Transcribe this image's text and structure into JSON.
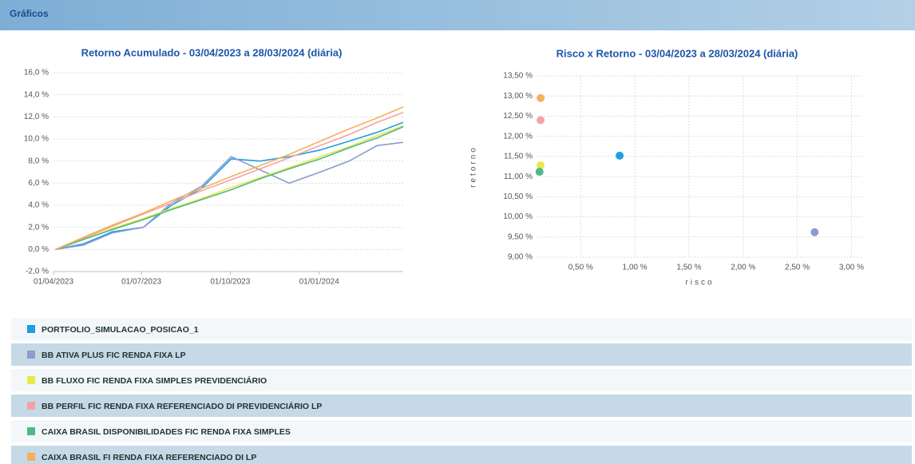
{
  "section_title": "Gráficos",
  "chart_data": [
    {
      "type": "line",
      "title": "Retorno Acumulado - 03/04/2023 a 28/03/2024 (diária)",
      "x": [
        "03/04/2023",
        "02/05/2023",
        "01/06/2023",
        "03/07/2023",
        "01/08/2023",
        "01/09/2023",
        "02/10/2023",
        "01/11/2023",
        "01/12/2023",
        "02/01/2024",
        "01/02/2024",
        "01/03/2024",
        "28/03/2024"
      ],
      "xlim": [
        "01/04/2023",
        "28/03/2024"
      ],
      "xticks": [
        "01/04/2023",
        "01/07/2023",
        "01/10/2023",
        "01/01/2024"
      ],
      "ylim": [
        -2,
        16
      ],
      "yticks": [
        {
          "value": -2,
          "label": "-2,0 %"
        },
        {
          "value": 0,
          "label": "0,0 %"
        },
        {
          "value": 2,
          "label": "2,0 %"
        },
        {
          "value": 4,
          "label": "4,0 %"
        },
        {
          "value": 6,
          "label": "6,0 %"
        },
        {
          "value": 8,
          "label": "8,0 %"
        },
        {
          "value": 10,
          "label": "10,0 %"
        },
        {
          "value": 12,
          "label": "12,0 %"
        },
        {
          "value": 14,
          "label": "14,0 %"
        },
        {
          "value": 16,
          "label": "16,0 %"
        }
      ],
      "grid": true,
      "series": [
        {
          "name": "PORTFOLIO_SIMULACAO_POSICAO_1",
          "color": "#1e9fe0",
          "values": [
            0,
            0.5,
            1.6,
            2.0,
            4.0,
            5.5,
            8.2,
            8.0,
            8.4,
            9.0,
            9.8,
            10.6,
            11.5
          ]
        },
        {
          "name": "BB ATIVA PLUS FIC RENDA FIXA LP",
          "color": "#8d9bd0",
          "values": [
            0,
            0.4,
            1.5,
            2.0,
            4.2,
            5.7,
            8.4,
            7.2,
            6.0,
            7.0,
            8.0,
            9.4,
            9.7
          ]
        },
        {
          "name": "BB FLUXO FIC RENDA FIXA SIMPLES PREVIDENCIÁRIO",
          "color": "#e8e84a",
          "values": [
            0,
            0.9,
            1.9,
            2.8,
            3.7,
            4.6,
            5.6,
            6.5,
            7.4,
            8.4,
            9.3,
            10.3,
            11.2
          ]
        },
        {
          "name": "BB PERFIL FIC RENDA FIXA REFERENCIADO DI PREVIDENCIÁRIO LP",
          "color": "#f4a3a3",
          "values": [
            0,
            1.0,
            2.1,
            3.2,
            4.2,
            5.3,
            6.3,
            7.3,
            8.3,
            9.4,
            10.4,
            11.5,
            12.4
          ]
        },
        {
          "name": "CAIXA BRASIL DISPONIBILIDADES FIC RENDA FIXA SIMPLES",
          "color": "#4fb886",
          "values": [
            0,
            0.9,
            1.8,
            2.7,
            3.6,
            4.5,
            5.4,
            6.4,
            7.3,
            8.2,
            9.2,
            10.1,
            11.1
          ]
        },
        {
          "name": "CAIXA BRASIL FI RENDA FIXA REFERENCIADO DI LP",
          "color": "#f6b05a",
          "values": [
            0,
            1.1,
            2.2,
            3.3,
            4.4,
            5.5,
            6.6,
            7.6,
            8.6,
            9.8,
            10.9,
            11.9,
            12.9
          ]
        }
      ]
    },
    {
      "type": "scatter",
      "title": "Risco x Retorno - 03/04/2023 a 28/03/2024 (diária)",
      "x_label": "risco",
      "y_label": "retorno",
      "x": [
        0.86,
        2.66,
        0.13,
        0.13,
        0.12,
        0.13
      ],
      "values": [
        11.52,
        9.62,
        11.28,
        12.4,
        11.12,
        12.95
      ],
      "colors": [
        "#1e9fe0",
        "#8d9bd0",
        "#e8e84a",
        "#f4a3a3",
        "#4fb886",
        "#f6b05a"
      ],
      "xlim": [
        0.1,
        3.1
      ],
      "xticks": [
        {
          "value": 0.5,
          "label": "0,50 %"
        },
        {
          "value": 1.0,
          "label": "1,00 %"
        },
        {
          "value": 1.5,
          "label": "1,50 %"
        },
        {
          "value": 2.0,
          "label": "2,00 %"
        },
        {
          "value": 2.5,
          "label": "2,50 %"
        },
        {
          "value": 3.0,
          "label": "3,00 %"
        }
      ],
      "ylim": [
        9.0,
        13.5
      ],
      "yticks": [
        {
          "value": 9.0,
          "label": "9,00 %"
        },
        {
          "value": 9.5,
          "label": "9,50 %"
        },
        {
          "value": 10.0,
          "label": "10,00 %"
        },
        {
          "value": 10.5,
          "label": "10,50 %"
        },
        {
          "value": 11.0,
          "label": "11,00 %"
        },
        {
          "value": 11.5,
          "label": "11,50 %"
        },
        {
          "value": 12.0,
          "label": "12,00 %"
        },
        {
          "value": 12.5,
          "label": "12,50 %"
        },
        {
          "value": 13.0,
          "label": "13,00 %"
        },
        {
          "value": 13.5,
          "label": "13,50 %"
        }
      ],
      "grid": true
    }
  ]
}
